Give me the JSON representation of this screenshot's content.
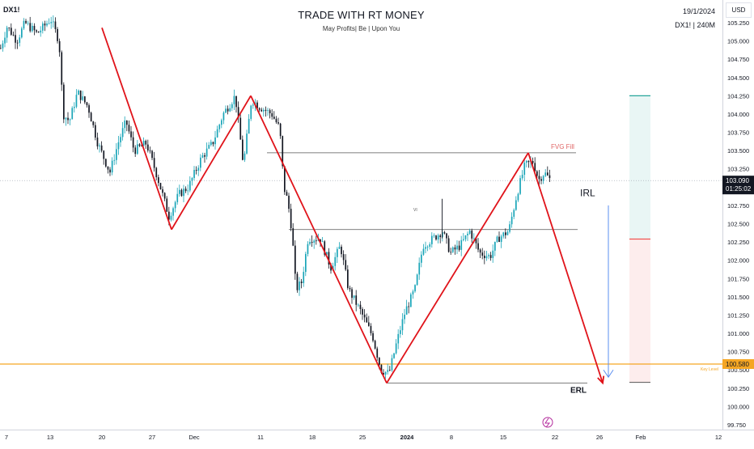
{
  "header": {
    "symbol": "DX1!",
    "title": "TRADE WITH RT MONEY",
    "subtitle": "May Profits| Be |  Upon You",
    "date": "19/1/2024",
    "timeframe": "DX1! | 240M",
    "currency": "USD"
  },
  "annotations": {
    "fvg_fill": "FVG Fill",
    "irl": "IRL",
    "erl": "ERL",
    "key_level": "Key Level",
    "small_label": "VI"
  },
  "price_badges": {
    "current_price": "103.090",
    "countdown": "01:25:02",
    "key_level_price": "100.580"
  },
  "colors": {
    "candle": "#1aa5b8",
    "candle_dark": "#131722",
    "zigzag": "#e0131a",
    "key_level": "#f5a623",
    "target_green": "#26a69a",
    "stop_red": "#ef5350",
    "arrow_blue": "#5b8ff0"
  },
  "chart_data": {
    "type": "line",
    "instrument": "DX1!",
    "timeframe": "240M",
    "y_axis": {
      "min": 99.75,
      "max": 105.25,
      "ticks": [
        "105.250",
        "105.000",
        "104.750",
        "104.500",
        "104.250",
        "104.000",
        "103.750",
        "103.500",
        "103.250",
        "103.000",
        "102.750",
        "102.500",
        "102.250",
        "102.000",
        "101.750",
        "101.500",
        "101.250",
        "101.000",
        "100.750",
        "100.500",
        "100.250",
        "100.000",
        "99.750"
      ]
    },
    "x_axis": {
      "ticks": [
        {
          "label": "7",
          "pos": 8
        },
        {
          "label": "13",
          "pos": 62
        },
        {
          "label": "20",
          "pos": 126
        },
        {
          "label": "27",
          "pos": 188
        },
        {
          "label": "Dec",
          "pos": 240
        },
        {
          "label": "11",
          "pos": 322
        },
        {
          "label": "18",
          "pos": 386
        },
        {
          "label": "25",
          "pos": 448
        },
        {
          "label": "2024",
          "pos": 503
        },
        {
          "label": "8",
          "pos": 558
        },
        {
          "label": "15",
          "pos": 622
        },
        {
          "label": "22",
          "pos": 686
        },
        {
          "label": "26",
          "pos": 741
        },
        {
          "label": "Feb",
          "pos": 792
        },
        {
          "label": "12",
          "pos": 888
        }
      ]
    },
    "price_path": [
      [
        0,
        104.9
      ],
      [
        8,
        105.2
      ],
      [
        20,
        105.0
      ],
      [
        30,
        105.25
      ],
      [
        45,
        105.1
      ],
      [
        62,
        105.3
      ],
      [
        72,
        105.0
      ],
      [
        74,
        104.7
      ],
      [
        77,
        104.0
      ],
      [
        85,
        103.9
      ],
      [
        95,
        104.3
      ],
      [
        108,
        104.1
      ],
      [
        120,
        103.6
      ],
      [
        135,
        103.2
      ],
      [
        145,
        103.6
      ],
      [
        155,
        103.9
      ],
      [
        165,
        103.5
      ],
      [
        180,
        103.6
      ],
      [
        192,
        103.2
      ],
      [
        208,
        102.6
      ],
      [
        220,
        102.9
      ],
      [
        232,
        103.0
      ],
      [
        248,
        103.4
      ],
      [
        262,
        103.6
      ],
      [
        275,
        104.0
      ],
      [
        290,
        104.25
      ],
      [
        300,
        103.3
      ],
      [
        310,
        104.2
      ],
      [
        320,
        104.1
      ],
      [
        335,
        104.0
      ],
      [
        345,
        103.8
      ],
      [
        350,
        103.0
      ],
      [
        355,
        102.8
      ],
      [
        360,
        102.4
      ],
      [
        365,
        101.6
      ],
      [
        372,
        101.7
      ],
      [
        380,
        102.3
      ],
      [
        395,
        102.3
      ],
      [
        408,
        101.9
      ],
      [
        420,
        102.2
      ],
      [
        430,
        101.6
      ],
      [
        445,
        101.3
      ],
      [
        460,
        100.95
      ],
      [
        470,
        100.5
      ],
      [
        480,
        100.45
      ],
      [
        490,
        100.9
      ],
      [
        500,
        101.3
      ],
      [
        512,
        101.6
      ],
      [
        522,
        102.2
      ],
      [
        535,
        102.3
      ],
      [
        546,
        102.4
      ],
      [
        556,
        102.1
      ],
      [
        568,
        102.2
      ],
      [
        580,
        102.4
      ],
      [
        592,
        102.1
      ],
      [
        605,
        102.05
      ],
      [
        615,
        102.3
      ],
      [
        628,
        102.4
      ],
      [
        638,
        102.9
      ],
      [
        648,
        103.3
      ],
      [
        658,
        103.35
      ],
      [
        665,
        103.1
      ],
      [
        672,
        103.2
      ],
      [
        680,
        103.09
      ]
    ],
    "zigzag": [
      {
        "x": 126,
        "y": 105.18
      },
      {
        "x": 212,
        "y": 102.42
      },
      {
        "x": 310,
        "y": 104.25
      },
      {
        "x": 478,
        "y": 100.32
      },
      {
        "x": 653,
        "y": 103.47
      },
      {
        "x": 745,
        "y": 100.32
      }
    ],
    "horizontal_levels": [
      {
        "name": "FVG Fill",
        "price": 103.47,
        "x1": 330,
        "x2": 712
      },
      {
        "name": "range-top",
        "price": 102.42,
        "x1": 357,
        "x2": 714
      },
      {
        "name": "ERL",
        "price": 100.32,
        "x1": 478,
        "x2": 726
      },
      {
        "name": "Key Level",
        "price": 100.58,
        "x1": 0,
        "x2": 893
      },
      {
        "name": "current",
        "price": 103.09,
        "x1": 0,
        "x2": 893
      }
    ],
    "position_tool": {
      "entry": 102.29,
      "target": 104.25,
      "stop": 100.33
    }
  }
}
